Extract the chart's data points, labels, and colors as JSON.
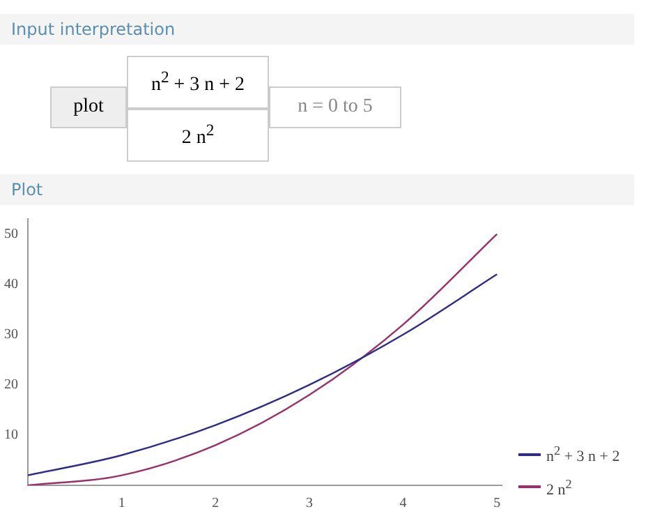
{
  "chart_data": {
    "type": "line",
    "title": "Plot",
    "annotations": [
      "Input interpretation",
      "plot",
      "n$^{2}$ + 3 n + 2",
      "2 n$^{2}$",
      "n = 0 to 5"
    ],
    "x": [
      0,
      1,
      2,
      3,
      4,
      5
    ],
    "series": [
      {
        "name": "n$^{2}$ + 3 n + 2",
        "color": "#2e2c8c",
        "values": [
          2,
          6,
          12,
          20,
          30,
          42
        ]
      },
      {
        "name": "2 n$^{2}$",
        "color": "#9c2f6a",
        "values": [
          0,
          2,
          8,
          18,
          32,
          50
        ]
      }
    ],
    "xlim": [
      0,
      5.05
    ],
    "xticks": [
      1,
      2,
      3,
      4,
      5
    ],
    "ylim": [
      0,
      53
    ],
    "yticks": [
      10,
      20,
      30,
      40,
      50
    ],
    "grid": false,
    "legend": "bottom right",
    "marker": "none",
    "line_style": "solid"
  }
}
